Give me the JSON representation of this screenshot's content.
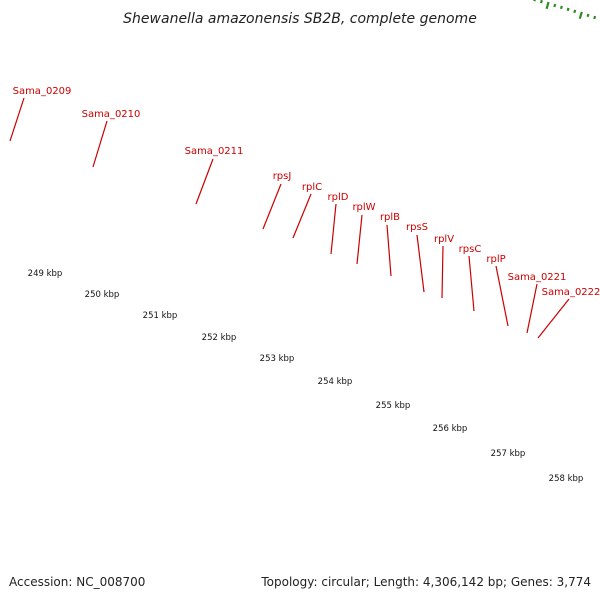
{
  "header": {
    "title": "Shewanella amazonensis SB2B, complete genome"
  },
  "footer": {
    "accession": "Accession: NC_008700",
    "summary": "Topology: circular; Length: 4,306,142 bp; Genes: 3,774"
  },
  "map": {
    "colors": {
      "background": "#ffffff",
      "gene_label": "#cc0000",
      "tick": "#2e8b20",
      "backbone": "#8c8c8c",
      "gene_forward": "#f4a0a0",
      "gene_reverse": "#ee0000"
    },
    "genes": [
      {
        "name": "Sama_0209"
      },
      {
        "name": "Sama_0210"
      },
      {
        "name": "Sama_0211"
      },
      {
        "name": "rpsJ"
      },
      {
        "name": "rplC"
      },
      {
        "name": "rplD"
      },
      {
        "name": "rplW"
      },
      {
        "name": "rplB"
      },
      {
        "name": "rpsS"
      },
      {
        "name": "rplV"
      },
      {
        "name": "rpsC"
      },
      {
        "name": "rplP"
      },
      {
        "name": "Sama_0221"
      },
      {
        "name": "Sama_0222"
      }
    ],
    "scale_labels": [
      "249 kbp",
      "250 kbp",
      "251 kbp",
      "252 kbp",
      "253 kbp",
      "254 kbp",
      "255 kbp",
      "256 kbp",
      "257 kbp",
      "258 kbp"
    ]
  }
}
